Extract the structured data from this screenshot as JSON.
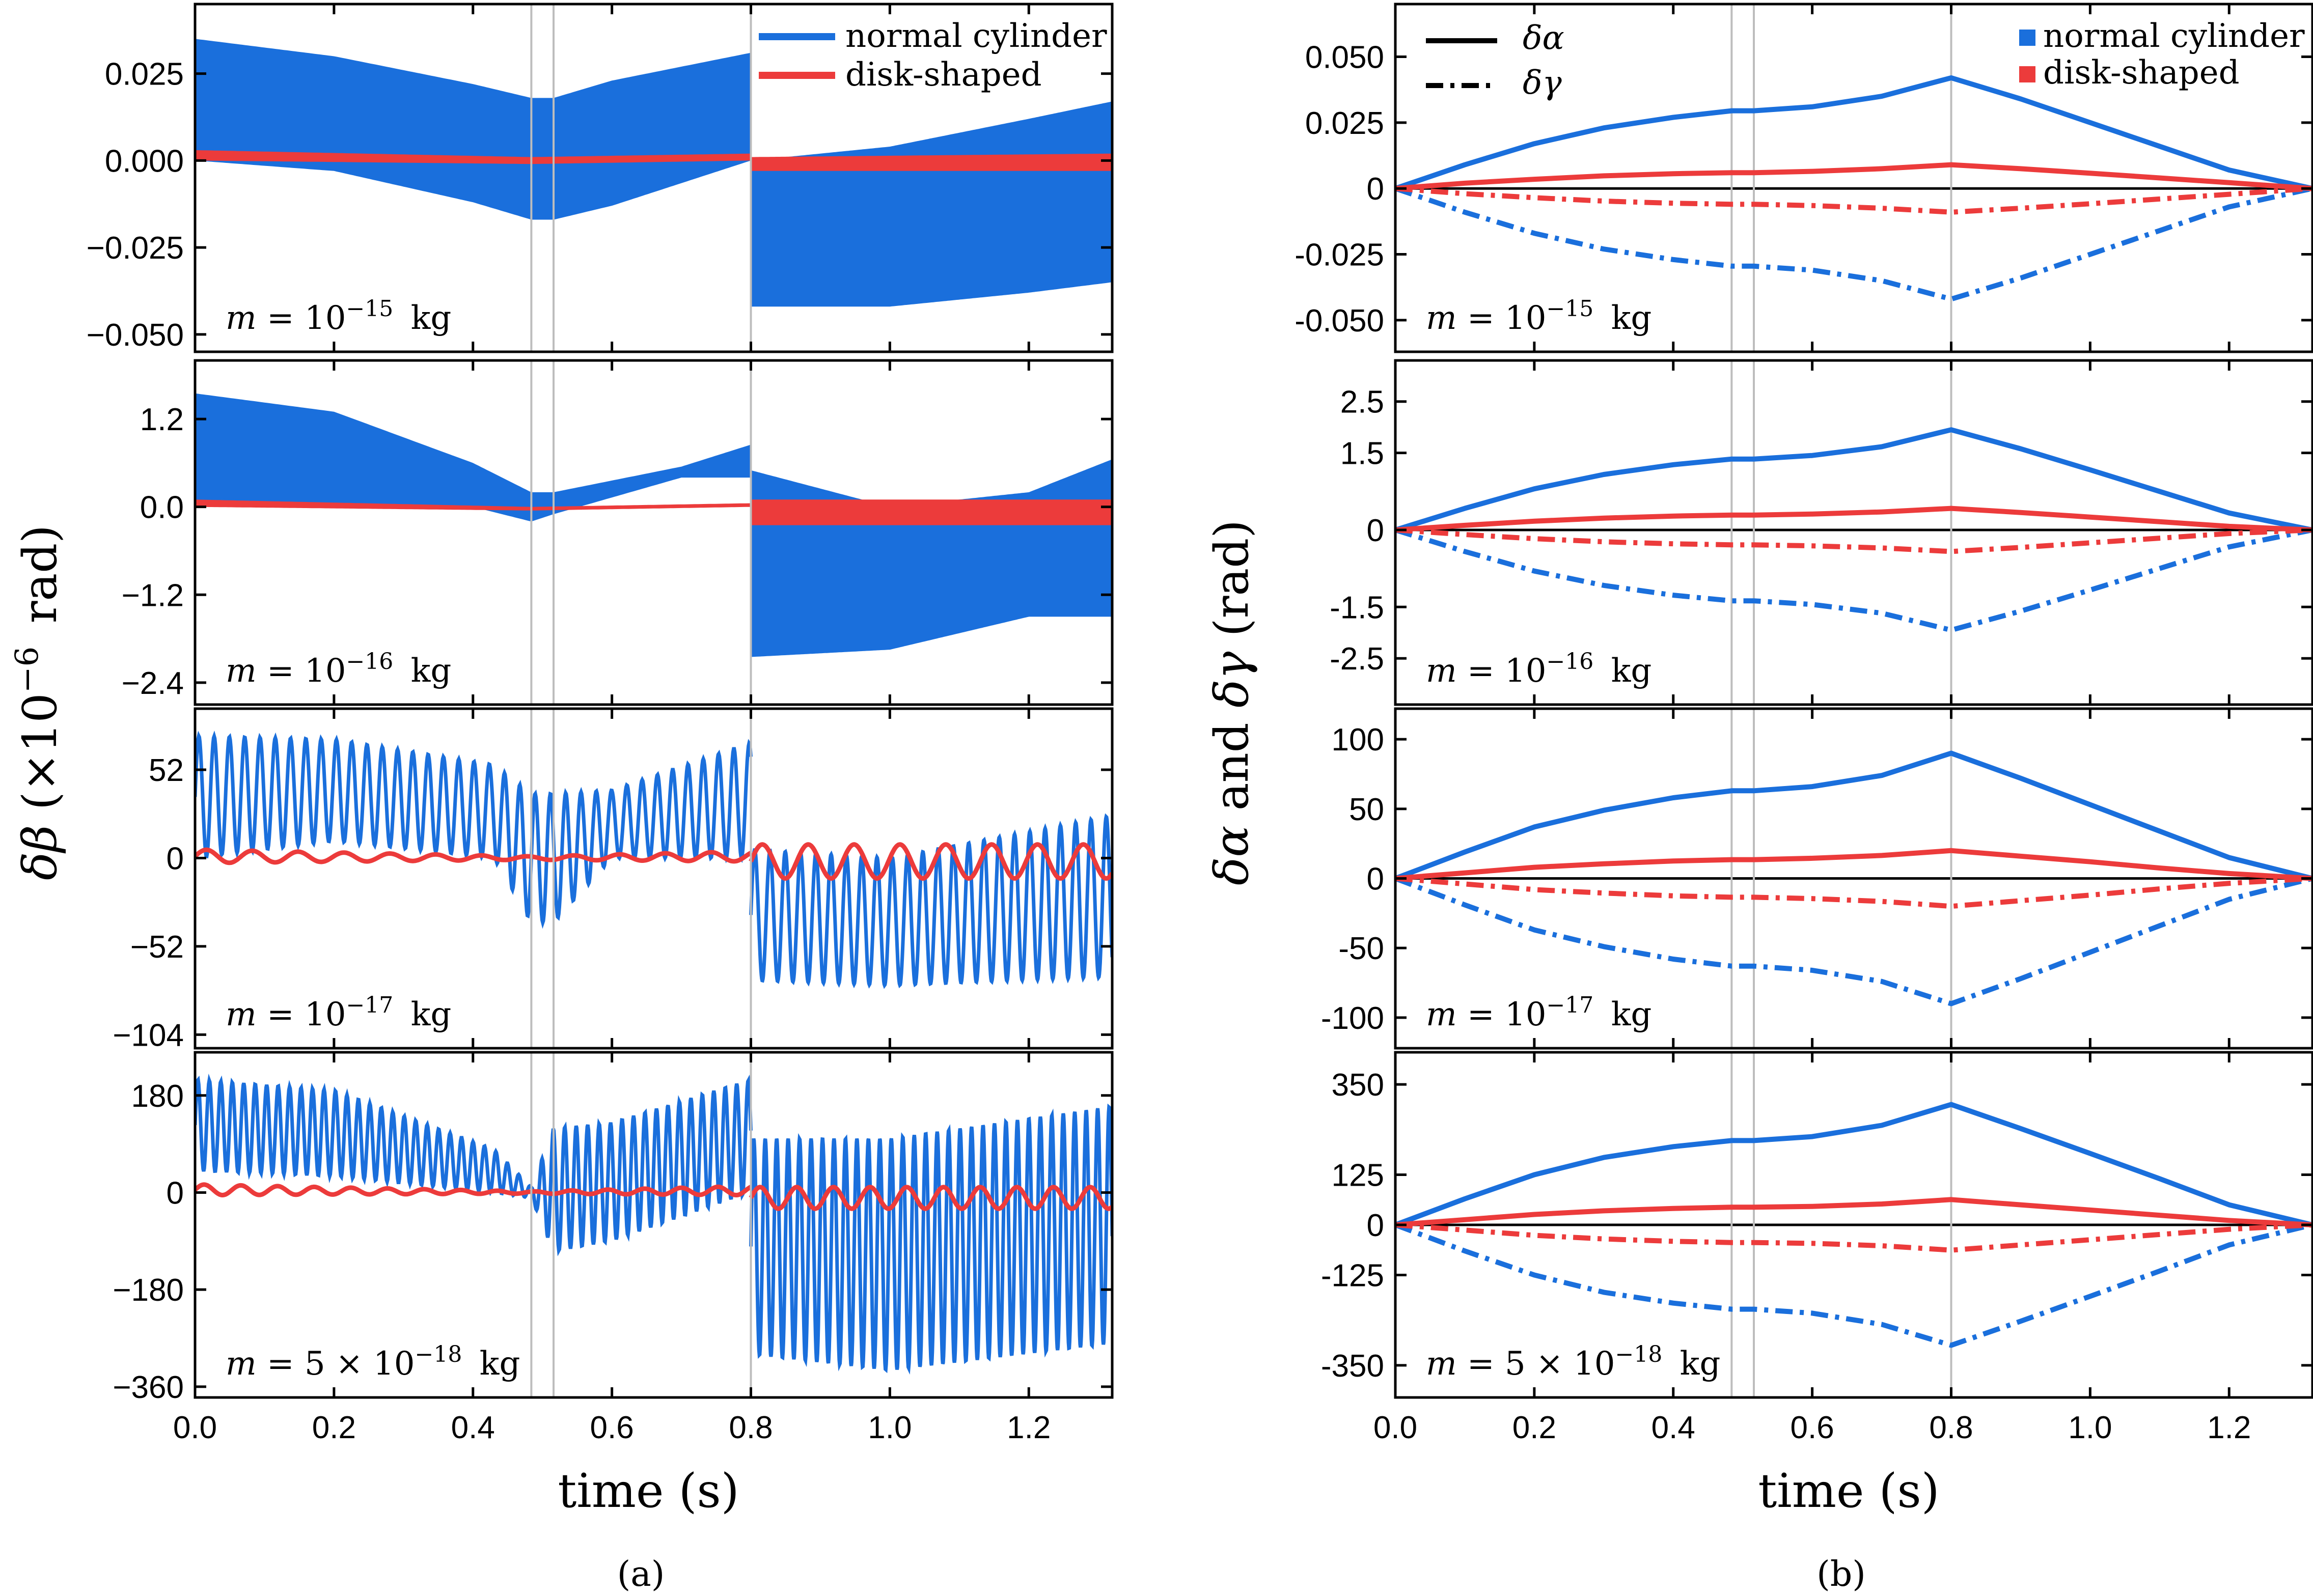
{
  "colors": {
    "blue": "#1a6fdc",
    "red": "#ec3b3b",
    "black": "#000000",
    "guide": "#bdbdbd"
  },
  "figure": {
    "panel_a_caption": "(a)",
    "panel_b_caption": "(b)",
    "xlabel": "time (s)",
    "a_ylabel_prefix": "δβ",
    "a_ylabel_paren_open": "(",
    "a_ylabel_unit": "×10",
    "a_ylabel_exp": "−6",
    "a_ylabel_rad": "rad)",
    "b_ylabel_alpha": "δα",
    "b_ylabel_and": "and",
    "b_ylabel_gamma": "δγ",
    "b_ylabel_unit": "(rad)",
    "a_legend": [
      "normal cylinder",
      "disk-shaped"
    ],
    "b_legend_lines": [
      "δα",
      "δγ"
    ],
    "b_legend_series": [
      "normal cylinder",
      "disk-shaped"
    ],
    "mass_prefix": "m = ",
    "mass_unit": "kg",
    "x_ticks": [
      "0.0",
      "0.2",
      "0.4",
      "0.6",
      "0.8",
      "1.0",
      "1.2"
    ],
    "guide_lines_a_s": [
      0.484,
      0.516,
      0.8
    ],
    "guide_lines_b_s": [
      0.484,
      0.516,
      0.8
    ]
  },
  "chart_data": [
    {
      "type": "area",
      "panel": "a",
      "masses": [
        {
          "base": "10",
          "exp": "−15"
        },
        {
          "base": "10",
          "exp": "−16"
        },
        {
          "base": "10",
          "exp": "−17"
        },
        {
          "coef": "5 × ",
          "base": "10",
          "exp": "−18"
        }
      ],
      "x_range": [
        0,
        1.32
      ],
      "rows": [
        {
          "ylim": [
            -0.055,
            0.045
          ],
          "yticks": [
            0.025,
            0,
            -0.025,
            -0.05
          ],
          "yticklabels": [
            "0.025",
            "0.000",
            "−0.025",
            "−0.050"
          ],
          "normal_cylinder": {
            "envelope_x": [
              0,
              0.2,
              0.4,
              0.484,
              0.516,
              0.6,
              0.8,
              0.8,
              1.0,
              1.2,
              1.32
            ],
            "upper": [
              0.035,
              0.03,
              0.022,
              0.018,
              0.018,
              0.023,
              0.031,
              0,
              0.004,
              0.012,
              0.017
            ],
            "lower": [
              0,
              -0.003,
              -0.012,
              -0.017,
              -0.017,
              -0.013,
              0,
              -0.042,
              -0.042,
              -0.038,
              -0.035
            ]
          },
          "disk_shaped": {
            "envelope_x": [
              0,
              0.484,
              0.8,
              0.8,
              1.32
            ],
            "upper": [
              0.003,
              0.001,
              0.002,
              0.001,
              0.002
            ],
            "lower": [
              0,
              -0.001,
              0,
              -0.003,
              -0.003
            ]
          }
        },
        {
          "ylim": [
            -2.7,
            2.0
          ],
          "yticks": [
            1.2,
            0,
            -1.2,
            -2.4
          ],
          "yticklabels": [
            "1.2",
            "0.0",
            "−1.2",
            "−2.4"
          ],
          "normal_cylinder": {
            "envelope_x": [
              0,
              0.2,
              0.4,
              0.484,
              0.516,
              0.7,
              0.8,
              0.8,
              1.0,
              1.2,
              1.32
            ],
            "upper": [
              1.55,
              1.3,
              0.6,
              0.2,
              0.2,
              0.55,
              0.85,
              0.5,
              0,
              0.2,
              0.65
            ],
            "lower": [
              0,
              0,
              0,
              -0.2,
              -0.1,
              0.4,
              0.4,
              -2.05,
              -1.95,
              -1.5,
              -1.5
            ]
          },
          "disk_shaped": {
            "envelope_x": [
              0,
              0.484,
              0.8,
              0.8,
              1.32
            ],
            "upper": [
              0.1,
              0.0,
              0.05,
              0.1,
              0.1
            ],
            "lower": [
              0,
              -0.05,
              0,
              -0.25,
              -0.25
            ]
          }
        },
        {
          "ylim": [
            -112,
            88
          ],
          "yticks": [
            52,
            0,
            -52,
            -104
          ],
          "yticklabels": [
            "52",
            "0",
            "−52",
            "−104"
          ],
          "normal_cylinder": {
            "oscillating": true,
            "cycles": 60,
            "envelope_x": [
              0,
              0.2,
              0.43,
              0.484,
              0.516,
              0.6,
              0.8,
              0.8,
              1.0,
              1.32
            ],
            "upper": [
              72,
              70,
              55,
              38,
              38,
              40,
              68,
              5,
              0,
              25
            ],
            "lower": [
              0,
              10,
              0,
              -38,
              -38,
              0,
              0,
              -72,
              -75,
              -70
            ]
          },
          "disk_shaped": {
            "oscillating": true,
            "cycles": 20,
            "envelope_x": [
              0,
              0.484,
              0.8,
              0.8,
              1.32
            ],
            "upper": [
              5,
              1,
              4,
              8,
              8
            ],
            "lower": [
              -3,
              -1,
              -2,
              -12,
              -12
            ]
          }
        },
        {
          "ylim": [
            -380,
            260
          ],
          "yticks": [
            180,
            0,
            -180,
            -360
          ],
          "yticklabels": [
            "180",
            "0",
            "−180",
            "−360"
          ],
          "normal_cylinder": {
            "oscillating": true,
            "cycles": 80,
            "envelope_x": [
              0,
              0.2,
              0.43,
              0.484,
              0.516,
              0.6,
              0.8,
              0.8,
              1.0,
              1.32
            ],
            "upper": [
              210,
              190,
              80,
              10,
              120,
              130,
              210,
              100,
              100,
              160
            ],
            "lower": [
              40,
              30,
              0,
              -10,
              -110,
              -90,
              0,
              -300,
              -330,
              -280
            ]
          },
          "disk_shaped": {
            "oscillating": true,
            "cycles": 25,
            "envelope_x": [
              0,
              0.484,
              0.8,
              0.8,
              1.32
            ],
            "upper": [
              15,
              2,
              12,
              10,
              10
            ],
            "lower": [
              -5,
              -2,
              -5,
              -30,
              -30
            ]
          }
        }
      ]
    },
    {
      "type": "line",
      "panel": "b",
      "masses": [
        {
          "base": "10",
          "exp": "−15"
        },
        {
          "base": "10",
          "exp": "−16"
        },
        {
          "base": "10",
          "exp": "−17"
        },
        {
          "coef": "5 × ",
          "base": "10",
          "exp": "−18"
        }
      ],
      "x_range": [
        0,
        1.32
      ],
      "rows": [
        {
          "ylim": [
            -0.062,
            0.07
          ],
          "yticks": [
            0.05,
            0.025,
            0,
            -0.025,
            -0.05
          ],
          "yticklabels": [
            "0.050",
            "0.025",
            "0",
            "-0.025",
            "-0.050"
          ],
          "x": [
            0,
            0.1,
            0.2,
            0.3,
            0.4,
            0.484,
            0.516,
            0.6,
            0.7,
            0.8,
            0.9,
            1.0,
            1.1,
            1.2,
            1.32
          ],
          "alpha_normal": [
            0,
            0.009,
            0.017,
            0.023,
            0.027,
            0.0295,
            0.0295,
            0.031,
            0.035,
            0.042,
            0.034,
            0.025,
            0.016,
            0.007,
            0
          ],
          "gamma_normal": [
            0,
            -0.009,
            -0.017,
            -0.023,
            -0.027,
            -0.0295,
            -0.0295,
            -0.031,
            -0.035,
            -0.042,
            -0.034,
            -0.025,
            -0.016,
            -0.007,
            0
          ],
          "alpha_disk": [
            0,
            0.002,
            0.0035,
            0.0048,
            0.0056,
            0.006,
            0.006,
            0.0065,
            0.0075,
            0.009,
            0.0075,
            0.0058,
            0.004,
            0.0022,
            0
          ],
          "gamma_disk": [
            0,
            -0.002,
            -0.0035,
            -0.0048,
            -0.0056,
            -0.006,
            -0.006,
            -0.0065,
            -0.0075,
            -0.009,
            -0.0075,
            -0.0058,
            -0.004,
            -0.0022,
            0
          ]
        },
        {
          "ylim": [
            -3.4,
            3.3
          ],
          "yticks": [
            2.5,
            1.5,
            0,
            -1.5,
            -2.5
          ],
          "yticklabels": [
            "2.5",
            "1.5",
            "0",
            "-1.5",
            "-2.5"
          ],
          "x": [
            0,
            0.1,
            0.2,
            0.3,
            0.4,
            0.484,
            0.516,
            0.6,
            0.7,
            0.8,
            0.9,
            1.0,
            1.1,
            1.2,
            1.32
          ],
          "alpha_normal": [
            0,
            0.42,
            0.8,
            1.08,
            1.27,
            1.38,
            1.38,
            1.45,
            1.62,
            1.95,
            1.58,
            1.17,
            0.75,
            0.33,
            0
          ],
          "gamma_normal": [
            0,
            -0.42,
            -0.8,
            -1.08,
            -1.27,
            -1.38,
            -1.38,
            -1.45,
            -1.62,
            -1.95,
            -1.58,
            -1.17,
            -0.75,
            -0.33,
            0
          ],
          "alpha_disk": [
            0,
            0.09,
            0.17,
            0.23,
            0.27,
            0.29,
            0.29,
            0.31,
            0.35,
            0.42,
            0.34,
            0.25,
            0.16,
            0.07,
            0
          ],
          "gamma_disk": [
            0,
            -0.09,
            -0.17,
            -0.23,
            -0.27,
            -0.29,
            -0.29,
            -0.31,
            -0.35,
            -0.42,
            -0.34,
            -0.25,
            -0.16,
            -0.07,
            0
          ]
        },
        {
          "ylim": [
            -122,
            122
          ],
          "yticks": [
            100,
            50,
            0,
            -50,
            -100
          ],
          "yticklabels": [
            "100",
            "50",
            "0",
            "-50",
            "-100"
          ],
          "x": [
            0,
            0.1,
            0.2,
            0.3,
            0.4,
            0.484,
            0.516,
            0.6,
            0.7,
            0.8,
            0.9,
            1.0,
            1.1,
            1.2,
            1.32
          ],
          "alpha_normal": [
            0,
            19,
            37,
            49,
            58,
            63,
            63,
            66,
            74,
            90,
            72,
            53,
            34,
            15,
            0
          ],
          "gamma_normal": [
            0,
            -19,
            -37,
            -49,
            -58,
            -63,
            -63,
            -66,
            -74,
            -90,
            -72,
            -53,
            -34,
            -15,
            0
          ],
          "alpha_disk": [
            0,
            4,
            8,
            10.5,
            12.5,
            13.5,
            13.5,
            14.5,
            16.5,
            20,
            16,
            12,
            7.5,
            3.5,
            0
          ],
          "gamma_disk": [
            0,
            -4,
            -8,
            -10.5,
            -12.5,
            -13.5,
            -13.5,
            -14.5,
            -16.5,
            -20,
            -16,
            -12,
            -7.5,
            -3.5,
            0
          ]
        },
        {
          "ylim": [
            -430,
            430
          ],
          "yticks": [
            350,
            125,
            0,
            -125,
            -350
          ],
          "yticklabels": [
            "350",
            "125",
            "0",
            "-125",
            "-350"
          ],
          "x": [
            0,
            0.1,
            0.2,
            0.3,
            0.4,
            0.484,
            0.516,
            0.6,
            0.7,
            0.8,
            0.9,
            1.0,
            1.1,
            1.2,
            1.32
          ],
          "alpha_normal": [
            0,
            65,
            125,
            168,
            195,
            210,
            210,
            220,
            248,
            300,
            240,
            178,
            115,
            50,
            0
          ],
          "gamma_normal": [
            0,
            -65,
            -125,
            -168,
            -195,
            -210,
            -210,
            -220,
            -248,
            -300,
            -240,
            -178,
            -115,
            -50,
            0
          ],
          "alpha_disk": [
            0,
            13,
            26,
            35,
            41,
            44,
            44,
            46,
            52,
            63,
            50,
            37,
            24,
            11,
            0
          ],
          "gamma_disk": [
            0,
            -13,
            -26,
            -35,
            -41,
            -44,
            -44,
            -46,
            -52,
            -63,
            -50,
            -37,
            -24,
            -11,
            0
          ]
        }
      ]
    }
  ]
}
